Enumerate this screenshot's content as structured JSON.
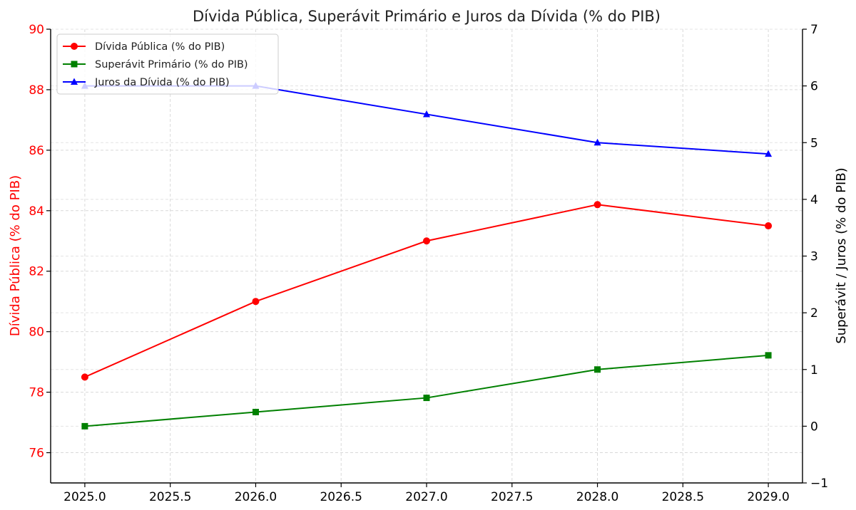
{
  "chart_data": {
    "type": "line",
    "title": "Dívida Pública, Superávit Primário e Juros da Dívida (% do PIB)",
    "x": [
      2025,
      2026,
      2027,
      2028,
      2029
    ],
    "xlim": [
      2024.8,
      2029.2
    ],
    "xticks": [
      2025.0,
      2025.5,
      2026.0,
      2026.5,
      2027.0,
      2027.5,
      2028.0,
      2028.5,
      2029.0
    ],
    "xtick_labels": [
      "2025.0",
      "2025.5",
      "2026.0",
      "2026.5",
      "2027.0",
      "2027.5",
      "2028.0",
      "2028.5",
      "2029.0"
    ],
    "y_left": {
      "label": "Dívida Pública (% do PIB)",
      "label_color": "#ff0000",
      "lim": [
        75,
        90
      ],
      "ticks": [
        76,
        78,
        80,
        82,
        84,
        86,
        88,
        90
      ],
      "tick_labels": [
        "76",
        "78",
        "80",
        "82",
        "84",
        "86",
        "88",
        "90"
      ]
    },
    "y_right": {
      "label": "Superávit / Juros (% do PIB)",
      "label_color": "#000000",
      "lim": [
        -1,
        7
      ],
      "ticks": [
        -1,
        0,
        1,
        2,
        3,
        4,
        5,
        6,
        7
      ],
      "tick_labels": [
        "−1",
        "0",
        "1",
        "2",
        "3",
        "4",
        "5",
        "6",
        "7"
      ]
    },
    "series": [
      {
        "name": "Dívida Pública (% do PIB)",
        "axis": "left",
        "color": "#ff0000",
        "marker": "circle",
        "values": [
          78.5,
          81.0,
          83.0,
          84.2,
          83.5
        ]
      },
      {
        "name": "Superávit Primário (% do PIB)",
        "axis": "right",
        "color": "#008000",
        "marker": "square",
        "values": [
          0.0,
          0.25,
          0.5,
          1.0,
          1.25
        ]
      },
      {
        "name": "Juros da Dívida (% do PIB)",
        "axis": "right",
        "color": "#0000ff",
        "marker": "triangle",
        "values": [
          6.0,
          6.0,
          5.5,
          5.0,
          4.8
        ]
      }
    ],
    "grid": true,
    "legend_position": "top-left"
  }
}
